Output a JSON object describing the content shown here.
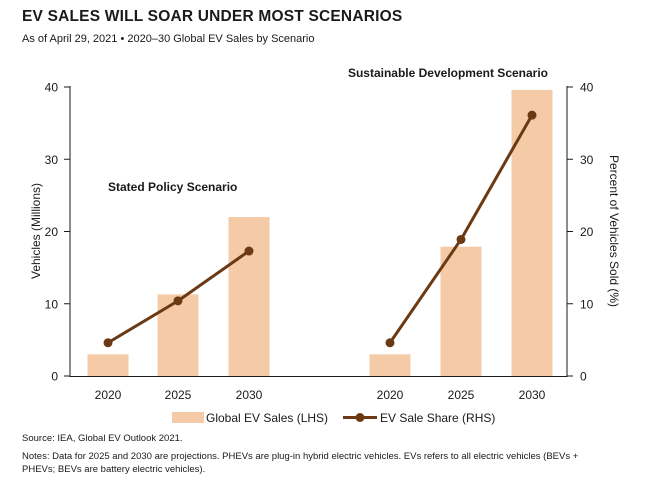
{
  "header": {
    "title": "EV SALES WILL SOAR UNDER MOST SCENARIOS",
    "subtitle": "As of April 29, 2021 • 2020–30 Global EV Sales by Scenario"
  },
  "footer": {
    "source": "Source: IEA, Global EV Outlook 2021.",
    "notes": "Notes: Data for 2025 and 2030 are projections. PHEVs are plug-in hybrid electric vehicles. EVs refers to all electric vehicles (BEVs + PHEVs; BEVs are battery electric vehicles)."
  },
  "chart_data": {
    "type": "bar",
    "left_axis": {
      "label": "Vehicles (Millions)",
      "ticks": [
        "0",
        "10",
        "20",
        "30",
        "40"
      ],
      "ylim": [
        0,
        40
      ]
    },
    "right_axis": {
      "label": "Percent of Vehicles Sold (%)",
      "ticks": [
        "0",
        "10",
        "20",
        "30",
        "40"
      ],
      "ylim": [
        0,
        40
      ]
    },
    "groups": [
      {
        "name": "Stated Policy Scenario",
        "categories": [
          "2020",
          "2025",
          "2030"
        ],
        "bar_values": [
          3,
          11.3,
          22
        ],
        "line_values": [
          4.6,
          10.4,
          17.3
        ]
      },
      {
        "name": "Sustainable Development Scenario",
        "categories": [
          "2020",
          "2025",
          "2030"
        ],
        "bar_values": [
          3,
          17.9,
          39.6
        ],
        "line_values": [
          4.6,
          18.9,
          36.1
        ]
      }
    ],
    "series": [
      {
        "name": "Global EV Sales (LHS)",
        "type": "bar",
        "color": "#f5cba7"
      },
      {
        "name": "EV Sale Share (RHS)",
        "type": "line",
        "color": "#6b3a14"
      }
    ],
    "legend_position": "bottom-center",
    "grid": false
  }
}
